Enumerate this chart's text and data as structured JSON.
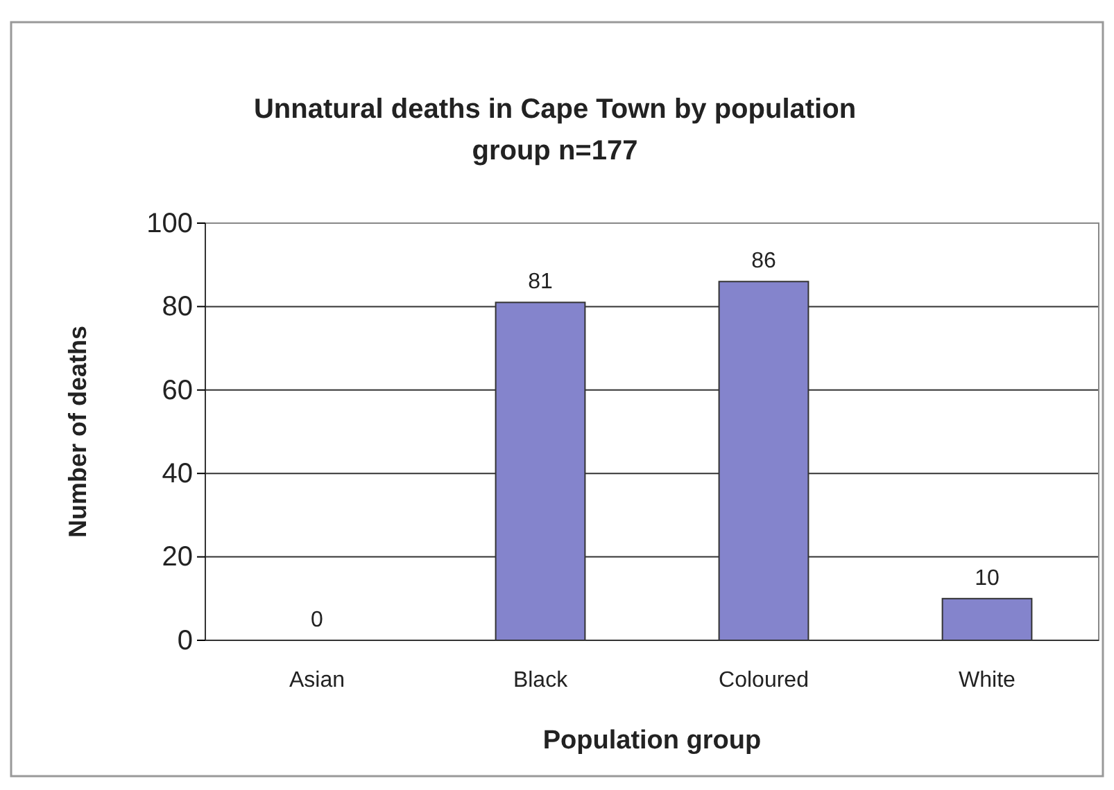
{
  "chart_data": {
    "type": "bar",
    "title": "Unnatural deaths in Cape Town by population group n=177",
    "xlabel": "Population group",
    "ylabel": "Number of deaths",
    "categories": [
      "Asian",
      "Black",
      "Coloured",
      "White"
    ],
    "values": [
      0,
      81,
      86,
      10
    ],
    "color": "#8484cc",
    "ylim": [
      0,
      100
    ],
    "yticks": [
      0,
      20,
      40,
      60,
      80,
      100
    ],
    "grid": "y",
    "data_labels": true
  }
}
